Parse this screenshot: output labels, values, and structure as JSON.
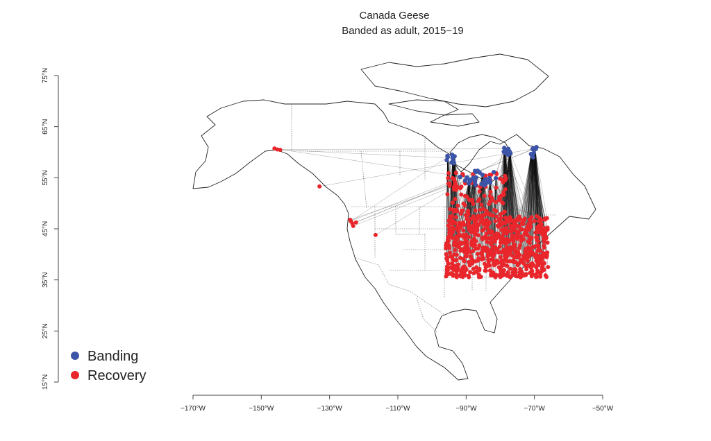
{
  "map": {
    "title": "Canada Geese",
    "subtitle": "Banded as adult, 2015−19",
    "x_axis": {
      "ticks": [
        "−170°W",
        "−150°W",
        "−130°W",
        "−110°W",
        "−90°W",
        "−70°W",
        "−50°W"
      ],
      "values": [
        -170,
        -150,
        -130,
        -110,
        -90,
        -70,
        -50
      ],
      "range": [
        -170,
        -50
      ]
    },
    "y_axis": {
      "ticks": [
        "15°N",
        "25°N",
        "35°N",
        "45°N",
        "55°N",
        "65°N",
        "75°N"
      ],
      "values": [
        15,
        25,
        35,
        45,
        55,
        65,
        75
      ],
      "range": [
        15,
        75
      ]
    },
    "legend": {
      "placement": "bottom-left",
      "items": [
        {
          "label": "Banding",
          "color": "#3d55a8"
        },
        {
          "label": "Recovery",
          "color": "#e8262b"
        }
      ]
    },
    "colors": {
      "banding": "#3d55a8",
      "recovery": "#e8262b",
      "coast": "#222222",
      "border": "#555555",
      "movement_line": "#111111"
    }
  },
  "chart_data": {
    "type": "scatter",
    "title": "Canada Geese",
    "subtitle": "Banded as adult, 2015−19",
    "xlim": [
      -170,
      -50
    ],
    "ylim": [
      15,
      75
    ],
    "legend_position": "bottom-left",
    "series": [
      {
        "name": "Banding",
        "color": "#3d55a8",
        "clusters": [
          {
            "lon_range": [
              -96,
              -93
            ],
            "lat_range": [
              57.5,
              59.5
            ],
            "count": 12
          },
          {
            "lon_range": [
              -92,
              -81
            ],
            "lat_range": [
              53.5,
              56.5
            ],
            "count": 30
          },
          {
            "lon_range": [
              -79,
              -77
            ],
            "lat_range": [
              58.5,
              61
            ],
            "count": 10
          },
          {
            "lon_range": [
              -71,
              -69
            ],
            "lat_range": [
              59,
              61
            ],
            "count": 10
          }
        ]
      },
      {
        "name": "Recovery",
        "color": "#e8262b",
        "clusters": [
          {
            "lon_range": [
              -96,
              -66
            ],
            "lat_range": [
              35.5,
              47.5
            ],
            "count": 700
          },
          {
            "lon_range": [
              -96,
              -78
            ],
            "lat_range": [
              47.5,
              56
            ],
            "count": 120
          },
          {
            "lon_range": [
              -147,
              -144
            ],
            "lat_range": [
              60,
              61
            ],
            "count": 3
          },
          {
            "lon_range": [
              -124,
              -121
            ],
            "lat_range": [
              45,
              48
            ],
            "count": 6
          },
          {
            "lon_range": [
              -133,
              -131
            ],
            "lat_range": [
              53,
              54
            ],
            "count": 1
          },
          {
            "lon_range": [
              -117,
              -116
            ],
            "lat_range": [
              43.5,
              44.5
            ],
            "count": 1
          }
        ]
      }
    ]
  }
}
